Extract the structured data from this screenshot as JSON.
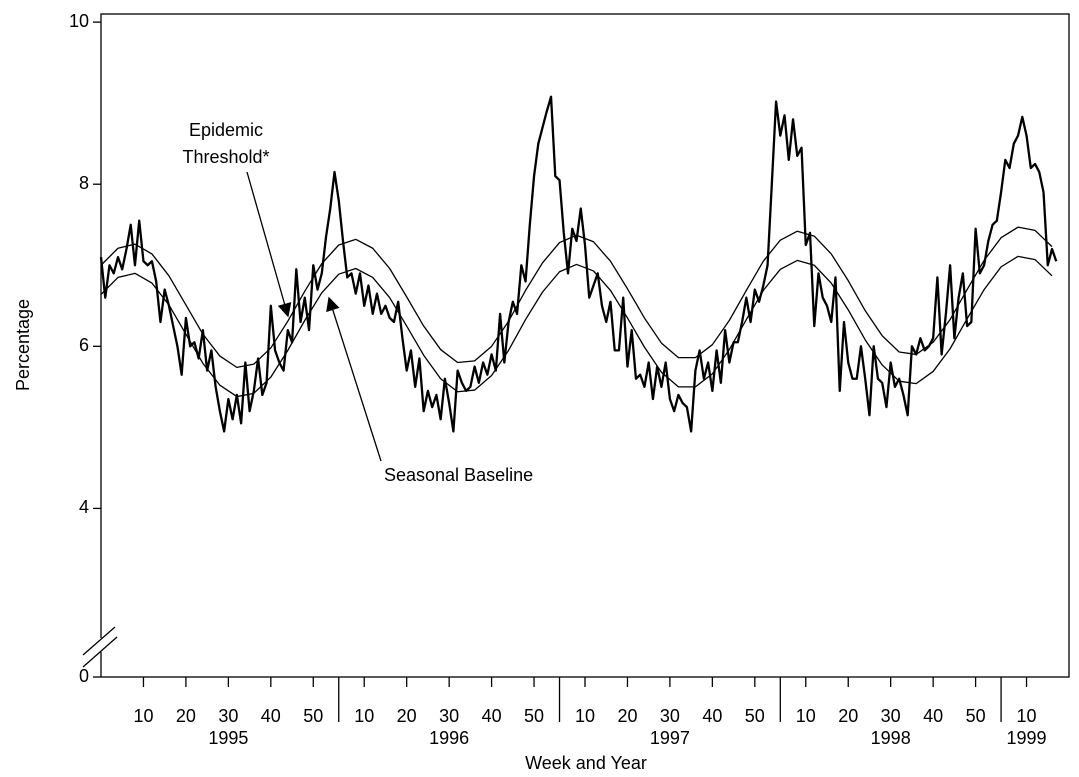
{
  "chart_data": {
    "type": "line",
    "y_label": "Percentage",
    "x_label": "Week and Year",
    "ylim": [
      0,
      10.1
    ],
    "y_break": [
      0,
      2.5
    ],
    "yticks": [
      0,
      4,
      6,
      8,
      10
    ],
    "xlim": [
      0,
      228
    ],
    "xticks": [
      {
        "value": 10,
        "label": "10"
      },
      {
        "value": 20,
        "label": "20"
      },
      {
        "value": 30,
        "label": "30"
      },
      {
        "value": 40,
        "label": "40"
      },
      {
        "value": 50,
        "label": "50"
      },
      {
        "value": 62,
        "label": "10"
      },
      {
        "value": 72,
        "label": "20"
      },
      {
        "value": 82,
        "label": "30"
      },
      {
        "value": 92,
        "label": "40"
      },
      {
        "value": 102,
        "label": "50"
      },
      {
        "value": 114,
        "label": "10"
      },
      {
        "value": 124,
        "label": "20"
      },
      {
        "value": 134,
        "label": "30"
      },
      {
        "value": 144,
        "label": "40"
      },
      {
        "value": 154,
        "label": "50"
      },
      {
        "value": 166,
        "label": "10"
      },
      {
        "value": 176,
        "label": "20"
      },
      {
        "value": 186,
        "label": "30"
      },
      {
        "value": 196,
        "label": "40"
      },
      {
        "value": 206,
        "label": "50"
      },
      {
        "value": 218,
        "label": "10"
      }
    ],
    "x_groups": [
      "1995",
      "1996",
      "1997",
      "1998",
      "1999"
    ],
    "series": [
      {
        "color": "#000000",
        "x": [
          0,
          1,
          2,
          3,
          4,
          5,
          6,
          7,
          8,
          9,
          10,
          11,
          12,
          13,
          14,
          15,
          16,
          17,
          18,
          19,
          20,
          21,
          22,
          23,
          24,
          25,
          26,
          27,
          28,
          29,
          30,
          31,
          32,
          33,
          34,
          35,
          36,
          37,
          38,
          39,
          40,
          41,
          42,
          43,
          44,
          45,
          46,
          47,
          48,
          49,
          50,
          51,
          52,
          53,
          54,
          55,
          56,
          57,
          58,
          59,
          60,
          61,
          62,
          63,
          64,
          65,
          66,
          67,
          68,
          69,
          70,
          71,
          72,
          73,
          74,
          75,
          76,
          77,
          78,
          79,
          80,
          81,
          82,
          83,
          84,
          85,
          86,
          87,
          88,
          89,
          90,
          91,
          92,
          93,
          94,
          95,
          96,
          97,
          98,
          99,
          100,
          101,
          102,
          103,
          104,
          105,
          106,
          107,
          108,
          109,
          110,
          111,
          112,
          113,
          114,
          115,
          116,
          117,
          118,
          119,
          120,
          121,
          122,
          123,
          124,
          125,
          126,
          127,
          128,
          129,
          130,
          131,
          132,
          133,
          134,
          135,
          136,
          137,
          138,
          139,
          140,
          141,
          142,
          143,
          144,
          145,
          146,
          147,
          148,
          149,
          150,
          151,
          152,
          153,
          154,
          155,
          156,
          157,
          158,
          159,
          160,
          161,
          162,
          163,
          164,
          165,
          166,
          167,
          168,
          169,
          170,
          171,
          172,
          173,
          174,
          175,
          176,
          177,
          178,
          179,
          180,
          181,
          182,
          183,
          184,
          185,
          186,
          187,
          188,
          189,
          190,
          191,
          192,
          193,
          194,
          195,
          196,
          197,
          198,
          199,
          200,
          201,
          202,
          203,
          204,
          205,
          206,
          207,
          208,
          209,
          210,
          211,
          212,
          213,
          214,
          215,
          216,
          217,
          218,
          219,
          220,
          221,
          222,
          223,
          224,
          225
        ],
        "values": [
          7.1,
          6.6,
          7.0,
          6.9,
          7.1,
          6.95,
          7.2,
          7.5,
          7.0,
          7.55,
          7.05,
          7.0,
          7.05,
          6.8,
          6.3,
          6.7,
          6.5,
          6.25,
          6.0,
          5.65,
          6.35,
          6.0,
          6.05,
          5.85,
          6.2,
          5.7,
          5.95,
          5.5,
          5.2,
          4.95,
          5.35,
          5.1,
          5.4,
          5.05,
          5.8,
          5.2,
          5.45,
          5.85,
          5.4,
          5.55,
          6.5,
          5.95,
          5.8,
          5.7,
          6.2,
          6.05,
          6.95,
          6.3,
          6.6,
          6.2,
          7.0,
          6.7,
          6.9,
          7.35,
          7.7,
          8.15,
          7.8,
          7.3,
          6.85,
          6.9,
          6.65,
          6.9,
          6.5,
          6.75,
          6.4,
          6.65,
          6.4,
          6.5,
          6.35,
          6.3,
          6.55,
          6.1,
          5.7,
          5.95,
          5.5,
          5.85,
          5.2,
          5.45,
          5.25,
          5.4,
          5.1,
          5.6,
          5.3,
          4.95,
          5.7,
          5.55,
          5.45,
          5.5,
          5.75,
          5.55,
          5.8,
          5.65,
          5.9,
          5.7,
          6.4,
          5.8,
          6.3,
          6.55,
          6.4,
          7.0,
          6.8,
          7.5,
          8.1,
          8.5,
          8.7,
          8.9,
          9.08,
          8.1,
          8.05,
          7.4,
          6.9,
          7.45,
          7.3,
          7.7,
          7.25,
          6.6,
          6.75,
          6.9,
          6.5,
          6.3,
          6.55,
          5.95,
          5.95,
          6.6,
          5.75,
          6.2,
          5.6,
          5.65,
          5.5,
          5.8,
          5.35,
          5.75,
          5.5,
          5.8,
          5.35,
          5.2,
          5.4,
          5.3,
          5.25,
          4.95,
          5.7,
          5.95,
          5.6,
          5.8,
          5.45,
          5.95,
          5.55,
          6.2,
          5.8,
          6.05,
          6.05,
          6.3,
          6.6,
          6.3,
          6.7,
          6.55,
          6.75,
          7.0,
          8.0,
          9.02,
          8.6,
          8.85,
          8.3,
          8.8,
          8.35,
          8.45,
          7.25,
          7.4,
          6.25,
          6.9,
          6.6,
          6.5,
          6.3,
          6.85,
          5.45,
          6.3,
          5.8,
          5.6,
          5.6,
          6.0,
          5.6,
          5.15,
          6.0,
          5.6,
          5.55,
          5.25,
          5.8,
          5.5,
          5.6,
          5.4,
          5.15,
          6.0,
          5.9,
          6.1,
          5.95,
          6.0,
          6.1,
          6.85,
          5.9,
          6.4,
          7.0,
          6.1,
          6.6,
          6.9,
          6.25,
          6.3,
          7.45,
          6.9,
          7.0,
          7.3,
          7.5,
          7.55,
          7.9,
          8.3,
          8.2,
          8.5,
          8.6,
          8.83,
          8.6,
          8.2,
          8.25,
          8.15,
          7.9,
          7.0,
          7.2,
          7.05
        ]
      },
      {
        "color": "#000000",
        "x": [
          0,
          4,
          8,
          12,
          16,
          20,
          24,
          28,
          32,
          36,
          40,
          44,
          48,
          52,
          56,
          60,
          64,
          68,
          72,
          76,
          80,
          84,
          88,
          92,
          96,
          100,
          104,
          108,
          112,
          116,
          120,
          124,
          128,
          132,
          136,
          140,
          144,
          148,
          152,
          156,
          160,
          164,
          168,
          172,
          176,
          180,
          184,
          188,
          192,
          196,
          200,
          204,
          208,
          212,
          216,
          220,
          224
        ],
        "values": [
          7.0,
          7.21,
          7.26,
          7.14,
          6.87,
          6.51,
          6.15,
          5.88,
          5.74,
          5.78,
          5.98,
          6.31,
          6.68,
          7.02,
          7.25,
          7.32,
          7.21,
          6.96,
          6.61,
          6.25,
          5.96,
          5.8,
          5.82,
          6.0,
          6.31,
          6.69,
          7.03,
          7.28,
          7.37,
          7.29,
          7.05,
          6.71,
          6.35,
          6.04,
          5.86,
          5.86,
          6.02,
          6.32,
          6.69,
          7.05,
          7.31,
          7.42,
          7.36,
          7.14,
          6.81,
          6.44,
          6.13,
          5.93,
          5.9,
          6.05,
          6.33,
          6.7,
          7.06,
          7.34,
          7.47,
          7.43,
          7.23
        ]
      },
      {
        "color": "#000000",
        "x": [
          0,
          4,
          8,
          12,
          16,
          20,
          24,
          28,
          32,
          36,
          40,
          44,
          48,
          52,
          56,
          60,
          64,
          68,
          72,
          76,
          80,
          84,
          88,
          92,
          96,
          100,
          104,
          108,
          112,
          116,
          120,
          124,
          128,
          132,
          136,
          140,
          144,
          148,
          152,
          156,
          160,
          164,
          168,
          172,
          176,
          180,
          184,
          188,
          192,
          196,
          200,
          204,
          208,
          212,
          216,
          220,
          224
        ],
        "values": [
          6.64,
          6.85,
          6.9,
          6.78,
          6.51,
          6.15,
          5.79,
          5.52,
          5.38,
          5.42,
          5.62,
          5.95,
          6.32,
          6.66,
          6.89,
          6.96,
          6.85,
          6.6,
          6.25,
          5.89,
          5.6,
          5.44,
          5.46,
          5.64,
          5.95,
          6.33,
          6.67,
          6.92,
          7.01,
          6.93,
          6.69,
          6.35,
          5.99,
          5.68,
          5.5,
          5.5,
          5.66,
          5.96,
          6.33,
          6.69,
          6.95,
          7.06,
          7.0,
          6.78,
          6.45,
          6.08,
          5.77,
          5.57,
          5.54,
          5.69,
          5.97,
          6.34,
          6.7,
          6.98,
          7.11,
          7.07,
          6.87
        ]
      }
    ],
    "annotations": [
      {
        "lines": [
          "Epidemic",
          "Threshold*"
        ]
      },
      {
        "lines": [
          "Seasonal Baseline"
        ]
      }
    ]
  }
}
